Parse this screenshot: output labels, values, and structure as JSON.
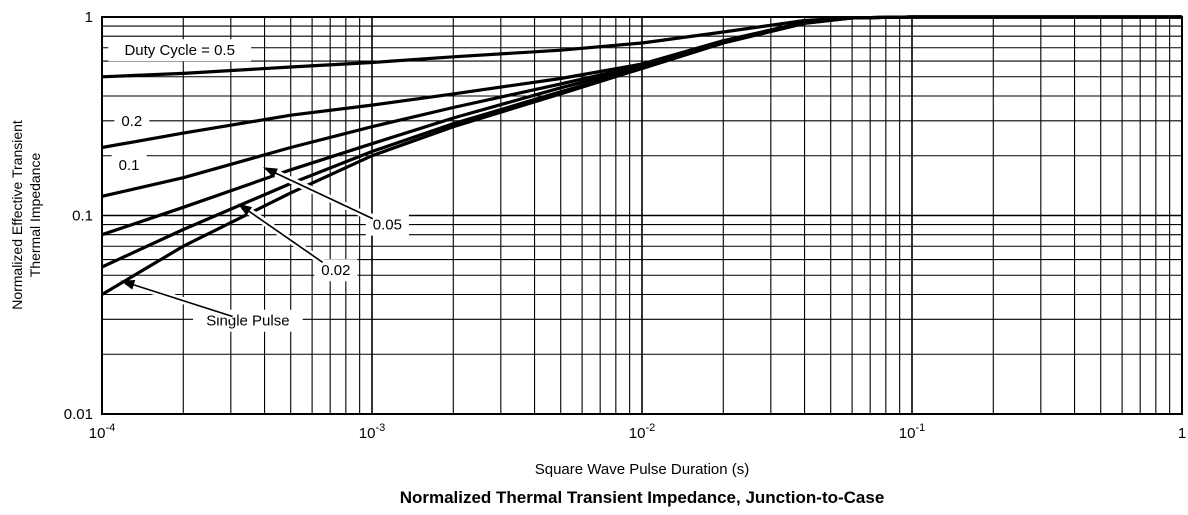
{
  "chart_data": {
    "type": "line",
    "title": "Normalized Thermal Transient Impedance, Junction-to-Case",
    "xlabel": "Square Wave Pulse Duration (s)",
    "ylabel_lines": [
      "Normalized Effective Transient",
      "Thermal Impedance"
    ],
    "x_scale": "log",
    "y_scale": "log",
    "xlim": [
      0.0001,
      1
    ],
    "ylim": [
      0.01,
      1
    ],
    "grid": true,
    "x_ticks": [
      {
        "base": "10",
        "exp": "-4"
      },
      {
        "base": "10",
        "exp": "-3"
      },
      {
        "base": "10",
        "exp": "-2"
      },
      {
        "base": "10",
        "exp": "-1"
      },
      {
        "base": "1",
        "exp": ""
      }
    ],
    "y_ticks": [
      "0.01",
      "0.1",
      "1"
    ],
    "series": [
      {
        "name": "Duty Cycle = 0.5",
        "x": [
          0.0001,
          0.0002,
          0.0005,
          0.001,
          0.002,
          0.005,
          0.01,
          0.02,
          0.04,
          0.06,
          0.1,
          1
        ],
        "y": [
          0.5,
          0.52,
          0.56,
          0.59,
          0.63,
          0.68,
          0.74,
          0.84,
          0.96,
          0.99,
          1.0,
          1.0
        ]
      },
      {
        "name": "0.2",
        "x": [
          0.0001,
          0.0002,
          0.0005,
          0.001,
          0.002,
          0.005,
          0.01,
          0.02,
          0.04,
          0.06,
          0.1,
          1
        ],
        "y": [
          0.22,
          0.26,
          0.32,
          0.36,
          0.41,
          0.49,
          0.58,
          0.76,
          0.94,
          0.99,
          1.0,
          1.0
        ]
      },
      {
        "name": "0.1",
        "x": [
          0.0001,
          0.0002,
          0.0005,
          0.001,
          0.002,
          0.005,
          0.01,
          0.02,
          0.04,
          0.06,
          0.1,
          1
        ],
        "y": [
          0.125,
          0.155,
          0.22,
          0.28,
          0.35,
          0.46,
          0.57,
          0.75,
          0.94,
          0.99,
          1.0,
          1.0
        ]
      },
      {
        "name": "0.05",
        "x": [
          0.0001,
          0.0002,
          0.0005,
          0.001,
          0.002,
          0.005,
          0.01,
          0.02,
          0.04,
          0.06,
          0.1,
          1
        ],
        "y": [
          0.08,
          0.11,
          0.17,
          0.23,
          0.31,
          0.44,
          0.56,
          0.75,
          0.94,
          0.99,
          1.0,
          1.0
        ]
      },
      {
        "name": "0.02",
        "x": [
          0.0001,
          0.0002,
          0.0005,
          0.001,
          0.002,
          0.005,
          0.01,
          0.02,
          0.04,
          0.06,
          0.1,
          1
        ],
        "y": [
          0.055,
          0.085,
          0.145,
          0.21,
          0.29,
          0.42,
          0.55,
          0.74,
          0.93,
          0.99,
          1.0,
          1.0
        ]
      },
      {
        "name": "Single Pulse",
        "x": [
          0.0001,
          0.0002,
          0.0005,
          0.001,
          0.002,
          0.005,
          0.01,
          0.02,
          0.04,
          0.06,
          0.1,
          1
        ],
        "y": [
          0.04,
          0.07,
          0.13,
          0.2,
          0.28,
          0.41,
          0.55,
          0.74,
          0.93,
          0.99,
          1.0,
          1.0
        ]
      }
    ],
    "annotations": [
      {
        "text": "Duty Cycle = 0.5",
        "series": "Duty Cycle = 0.5",
        "label_x": 0.000194,
        "label_y": 0.68,
        "arrow": false
      },
      {
        "text": "0.2",
        "series": "0.2",
        "label_x": 0.000129,
        "label_y": 0.3,
        "arrow": false
      },
      {
        "text": "0.1",
        "series": "0.1",
        "label_x": 0.000126,
        "label_y": 0.18,
        "arrow": false
      },
      {
        "text": "0.05",
        "series": "0.05",
        "label_x": 0.00114,
        "label_y": 0.09,
        "arrow": true,
        "target_x": 0.000395,
        "target_y": 0.175
      },
      {
        "text": "0.02",
        "series": "0.02",
        "label_x": 0.000735,
        "label_y": 0.053,
        "arrow": true,
        "target_x": 0.000318,
        "target_y": 0.115
      },
      {
        "text": "Single Pulse",
        "series": "Single Pulse",
        "label_x": 0.000347,
        "label_y": 0.0295,
        "arrow": true,
        "target_x": 0.000117,
        "target_y": 0.047
      }
    ]
  }
}
